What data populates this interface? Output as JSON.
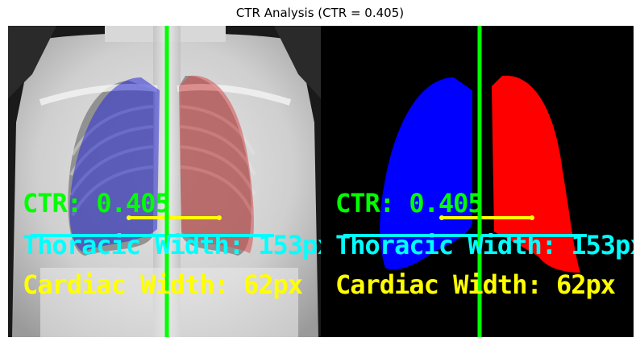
{
  "title": "CTR Analysis (CTR = 0.405)",
  "annotations": {
    "ctr_text": "CTR: 0.405",
    "thoracic_text": "Thoracic Width: 153px",
    "cardiac_text": "Cardiac Width: 62px"
  },
  "colors": {
    "midline": "#00ff00",
    "ctr_text": "#00ff00",
    "thoracic": "#00ffff",
    "cardiac": "#ffff00",
    "left_lung": "#0000ff",
    "right_lung": "#ff0000",
    "mask_background": "#000000"
  },
  "panels": [
    {
      "name": "xray-overlay",
      "content": "chest x-ray with lung segmentation overlay"
    },
    {
      "name": "segmentation-mask",
      "content": "binary lung segmentation mask"
    }
  ]
}
